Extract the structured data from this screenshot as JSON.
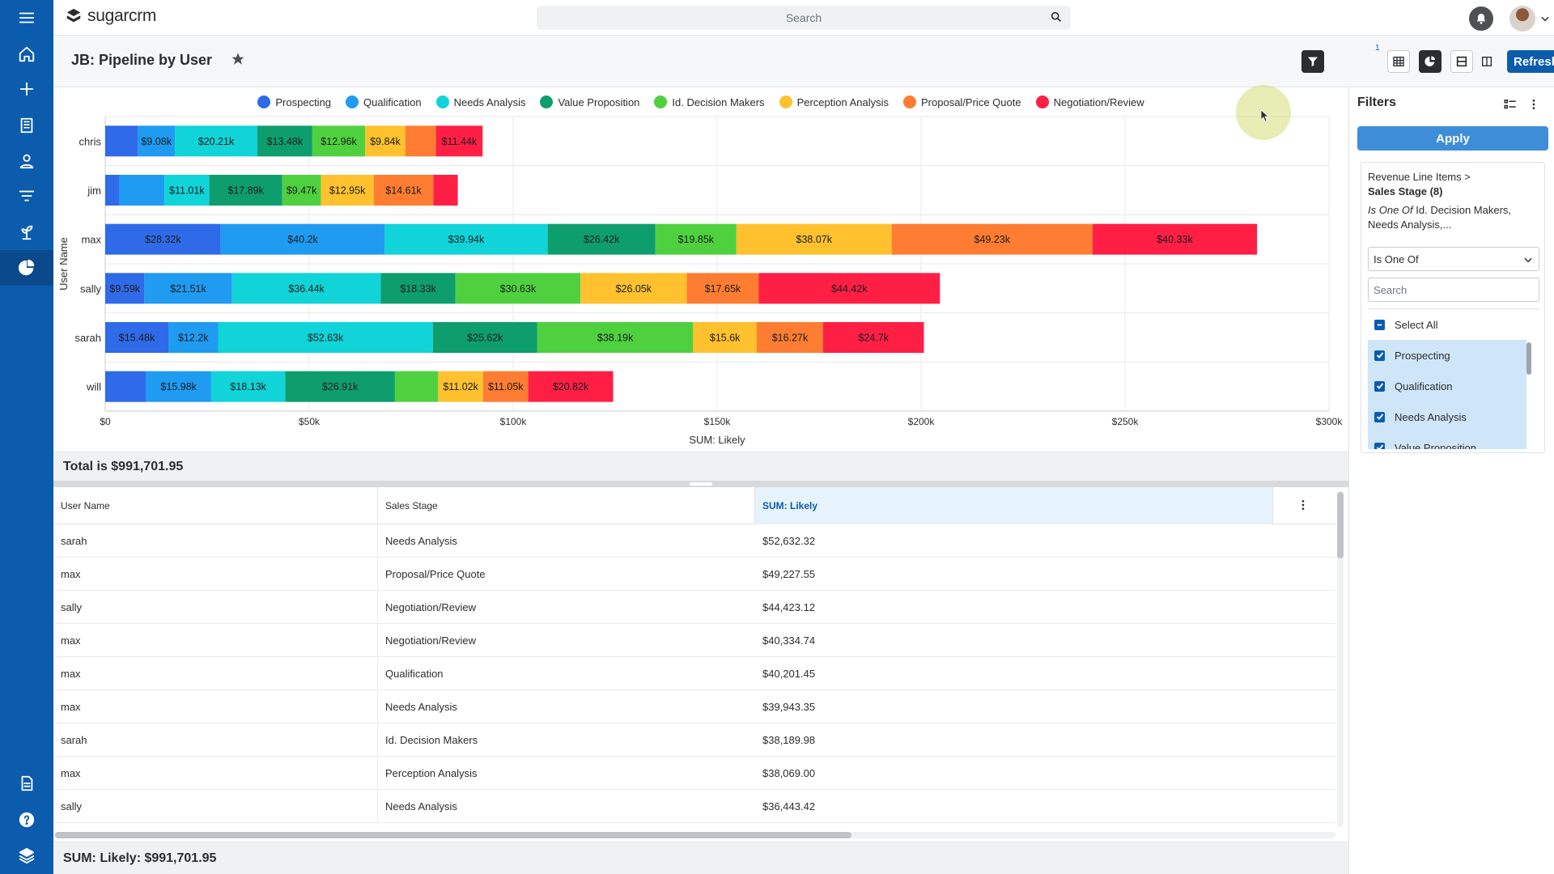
{
  "header": {
    "logo_text": "sugarcrm",
    "search_placeholder": "Search"
  },
  "page": {
    "title": "JB: Pipeline by User",
    "filter_badge": "1",
    "refresh_label": "Refresh"
  },
  "chart_data": {
    "type": "bar",
    "orientation": "horizontal",
    "stacked": true,
    "categories": [
      "chris",
      "jim",
      "max",
      "sally",
      "sarah",
      "will"
    ],
    "series": [
      {
        "name": "Prospecting",
        "color": "#2f6ae8",
        "values": [
          8000,
          3500,
          28320,
          9590,
          15480,
          10000
        ],
        "labels": [
          "",
          "",
          "$28.32k",
          "$9.59k",
          "$15.48k",
          ""
        ]
      },
      {
        "name": "Qualification",
        "color": "#1f9bf2",
        "values": [
          9080,
          11000,
          40200,
          21510,
          12200,
          15980
        ],
        "labels": [
          "$9.08k",
          "",
          "$40.2k",
          "$21.51k",
          "$12.2k",
          "$15.98k"
        ]
      },
      {
        "name": "Needs Analysis",
        "color": "#10d4d8",
        "values": [
          20210,
          11010,
          39940,
          36440,
          52630,
          18130
        ],
        "labels": [
          "$20.21k",
          "$11.01k",
          "$39.94k",
          "$36.44k",
          "$52.63k",
          "$18.13k"
        ]
      },
      {
        "name": "Value Proposition",
        "color": "#0e9e6e",
        "values": [
          13480,
          17890,
          26420,
          18330,
          25620,
          26910
        ],
        "labels": [
          "$13.48k",
          "$17.89k",
          "$26.42k",
          "$18.33k",
          "$25.62k",
          "$26.91k"
        ]
      },
      {
        "name": "Id. Decision Makers",
        "color": "#4fd13f",
        "values": [
          12960,
          9470,
          19850,
          30630,
          38190,
          10600
        ],
        "labels": [
          "$12.96k",
          "$9.47k",
          "$19.85k",
          "$30.63k",
          "$38.19k",
          ""
        ]
      },
      {
        "name": "Perception Analysis",
        "color": "#ffc12e",
        "values": [
          9840,
          12950,
          38070,
          26050,
          15600,
          11020
        ],
        "labels": [
          "$9.84k",
          "$12.95k",
          "$38.07k",
          "$26.05k",
          "$15.6k",
          "$11.02k"
        ]
      },
      {
        "name": "Proposal/Price Quote",
        "color": "#ff7d32",
        "values": [
          7500,
          14610,
          49230,
          17650,
          16270,
          11050
        ],
        "labels": [
          "",
          "$14.61k",
          "$49.23k",
          "$17.65k",
          "$16.27k",
          "$11.05k"
        ]
      },
      {
        "name": "Negotiation/Review",
        "color": "#ff1f45",
        "values": [
          11440,
          6000,
          40330,
          44420,
          24700,
          20820
        ],
        "labels": [
          "$11.44k",
          "",
          "$40.33k",
          "$44.42k",
          "$24.7k",
          "$20.82k"
        ]
      }
    ],
    "xlabel": "SUM: Likely",
    "ylabel": "User Name",
    "xlim": [
      0,
      300000
    ],
    "x_ticks": [
      "$0",
      "$50k",
      "$100k",
      "$150k",
      "$200k",
      "$250k",
      "$300k"
    ],
    "legend_position": "top-center",
    "grid": true
  },
  "summary": {
    "total": "Total is $991,701.95",
    "sum_footer": "SUM: Likely: $991,701.95"
  },
  "table": {
    "columns": [
      "User Name",
      "Sales Stage",
      "SUM: Likely"
    ],
    "rows": [
      [
        "sarah",
        "Needs Analysis",
        "$52,632.32"
      ],
      [
        "max",
        "Proposal/Price Quote",
        "$49,227.55"
      ],
      [
        "sally",
        "Negotiation/Review",
        "$44,423.12"
      ],
      [
        "max",
        "Negotiation/Review",
        "$40,334.74"
      ],
      [
        "max",
        "Qualification",
        "$40,201.45"
      ],
      [
        "max",
        "Needs Analysis",
        "$39,943.35"
      ],
      [
        "sarah",
        "Id. Decision Makers",
        "$38,189.98"
      ],
      [
        "max",
        "Perception Analysis",
        "$38,069.00"
      ],
      [
        "sally",
        "Needs Analysis",
        "$36,443.42"
      ]
    ]
  },
  "filters": {
    "title": "Filters",
    "apply_label": "Apply",
    "path": "Revenue Line Items >",
    "field": "Sales Stage (8)",
    "operator_italic": "Is One Of",
    "description_rest": " Id. Decision Makers, Needs Analysis,...",
    "operator_select": "Is One Of",
    "search_placeholder": "Search",
    "options": [
      {
        "label": "Select All",
        "state": "partial"
      },
      {
        "label": "Prospecting",
        "state": "checked"
      },
      {
        "label": "Qualification",
        "state": "checked"
      },
      {
        "label": "Needs Analysis",
        "state": "checked"
      },
      {
        "label": "Value Proposition",
        "state": "checked"
      }
    ]
  }
}
